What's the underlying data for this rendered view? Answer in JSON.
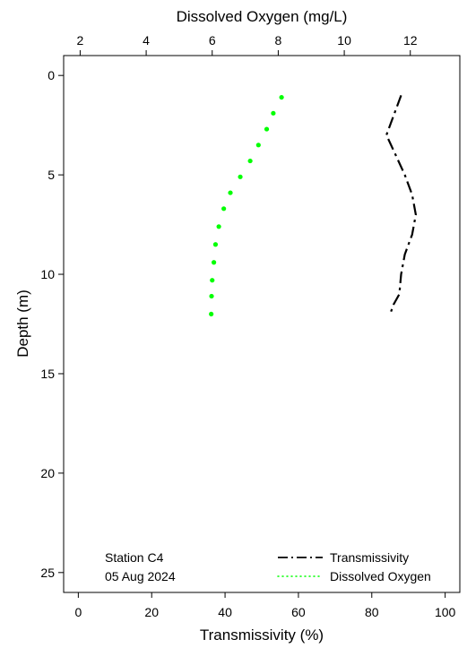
{
  "chart_data": {
    "type": "line",
    "annotation": [
      "Station C4",
      "05 Aug 2024"
    ],
    "legend": {
      "placement": "bottom-right",
      "entries": [
        "Transmissivity",
        "Dissolved Oxygen"
      ]
    },
    "grid": false,
    "axes": {
      "x_bottom": {
        "label": "Transmissivity (%)",
        "lim": [
          -4,
          104
        ],
        "ticks": [
          0,
          20,
          40,
          60,
          80,
          100
        ]
      },
      "x_top": {
        "label": "Dissolved Oxygen (mg/L)",
        "lim": [
          1.5,
          13.5
        ],
        "ticks": [
          2,
          4,
          6,
          8,
          10,
          12
        ]
      },
      "y": {
        "label": "Depth (m)",
        "lim": [
          26,
          -1
        ],
        "inverted": true,
        "ticks": [
          0,
          5,
          10,
          15,
          20,
          25
        ]
      }
    },
    "series": [
      {
        "name": "Transmissivity",
        "axis": "x_bottom",
        "style": "dashdot",
        "color": "#000000",
        "x": [
          88.0,
          84.0,
          86.5,
          89.0,
          91.0,
          92.0,
          91.0,
          89.0,
          88.0,
          87.5,
          86.0,
          85.0
        ],
        "depth": [
          1.0,
          3.0,
          4.0,
          5.0,
          6.0,
          7.0,
          8.0,
          9.0,
          10.0,
          11.0,
          11.5,
          12.0
        ]
      },
      {
        "name": "Dissolved Oxygen",
        "axis": "x_top",
        "style": "dotted",
        "color": "#00ff00",
        "x": [
          8.1,
          7.85,
          7.65,
          7.4,
          7.15,
          6.85,
          6.55,
          6.35,
          6.2,
          6.1,
          6.05,
          6.0,
          5.98,
          5.97
        ],
        "depth": [
          1.1,
          1.9,
          2.7,
          3.5,
          4.3,
          5.1,
          5.9,
          6.7,
          7.6,
          8.5,
          9.4,
          10.3,
          11.1,
          12.0
        ]
      }
    ]
  }
}
